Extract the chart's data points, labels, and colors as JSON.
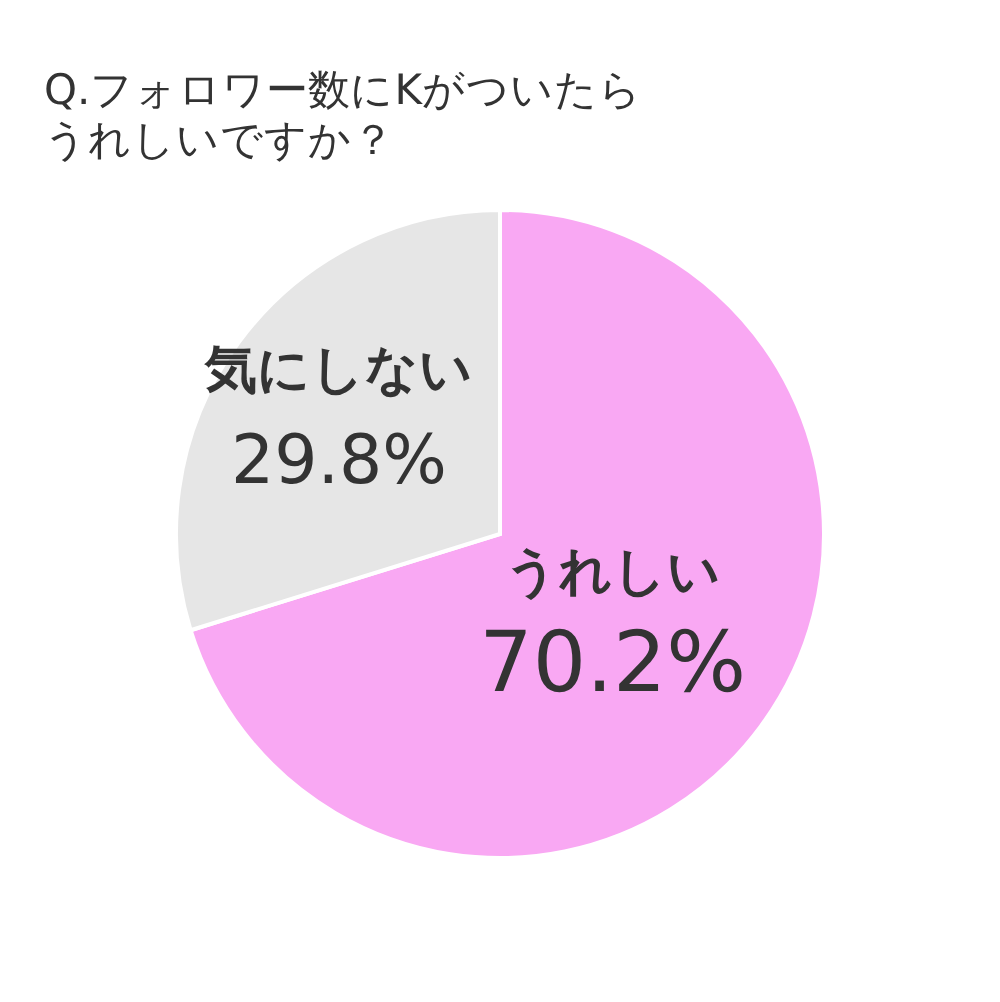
{
  "chart_data": {
    "type": "pie",
    "title": "Q.フォロワー数にKがついたらうれしいですか？",
    "categories": [
      "うれしい",
      "気にしない"
    ],
    "values": [
      70.2,
      29.8
    ],
    "colors": [
      "#f9a8f3",
      "#e6e6e6"
    ],
    "value_labels": [
      "70.2%",
      "29.8%"
    ],
    "legend": false
  }
}
